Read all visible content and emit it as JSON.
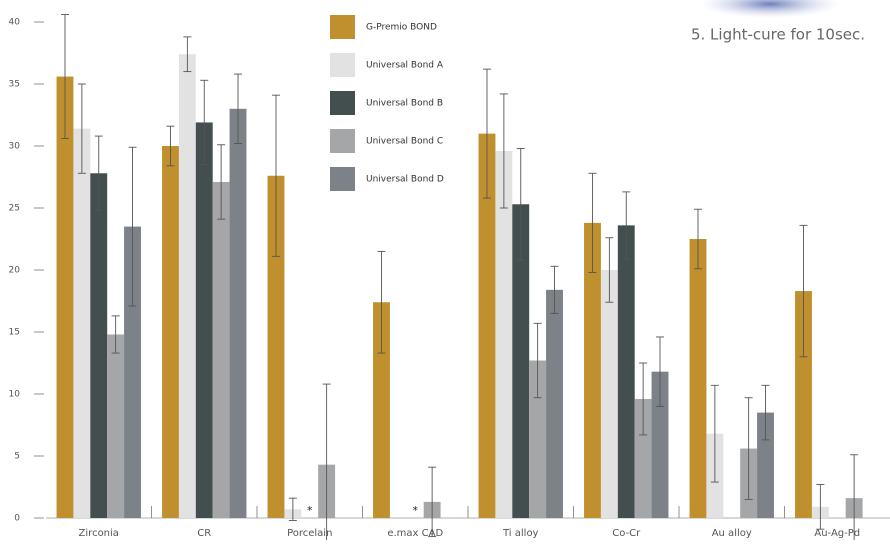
{
  "chart_data": {
    "type": "bar",
    "annotation": "5. Light-cure for 10sec.",
    "categories": [
      "Zirconia",
      "CR",
      "Porcelain",
      "e.max CAD",
      "Ti alloy",
      "Co-Cr",
      "Au alloy",
      "Au-Ag-Pd"
    ],
    "series": [
      {
        "name": "G-Premio BOND",
        "color": "#c0902f",
        "values": [
          35.6,
          30.0,
          27.6,
          17.4,
          31.0,
          23.8,
          22.5,
          18.3
        ],
        "errors": [
          5.0,
          1.6,
          6.5,
          4.1,
          5.2,
          4.0,
          2.4,
          5.3
        ]
      },
      {
        "name": "Universal Bond A",
        "color": "#e2e2e3",
        "values": [
          31.4,
          37.4,
          0.7,
          null,
          29.6,
          20.0,
          6.8,
          0.9
        ],
        "errors": [
          3.6,
          1.4,
          0.9,
          null,
          4.6,
          2.6,
          3.9,
          1.8
        ]
      },
      {
        "name": "Universal Bond B",
        "color": "#434e4e",
        "values": [
          27.8,
          31.9,
          null,
          null,
          25.3,
          23.6,
          null,
          null
        ],
        "errors": [
          3.0,
          3.4,
          null,
          null,
          4.5,
          2.7,
          null,
          null
        ],
        "value_labels": [
          null,
          null,
          "*",
          "*",
          null,
          null,
          null,
          null
        ]
      },
      {
        "name": "Universal Bond C",
        "color": "#a5a6a8",
        "values": [
          14.8,
          27.1,
          4.3,
          1.3,
          12.7,
          9.6,
          5.6,
          1.6
        ],
        "errors": [
          1.5,
          3.0,
          6.5,
          2.8,
          3.0,
          2.9,
          4.1,
          3.5
        ]
      },
      {
        "name": "Universal Bond D",
        "color": "#7c8288",
        "values": [
          23.5,
          33.0,
          null,
          null,
          18.4,
          11.8,
          8.5,
          null
        ],
        "errors": [
          6.4,
          2.8,
          null,
          null,
          1.9,
          2.8,
          2.2,
          null
        ]
      }
    ],
    "ylim": [
      0,
      40
    ],
    "yticks": [
      0,
      5,
      10,
      15,
      20,
      25,
      30,
      35,
      40
    ],
    "error_bars": true
  }
}
